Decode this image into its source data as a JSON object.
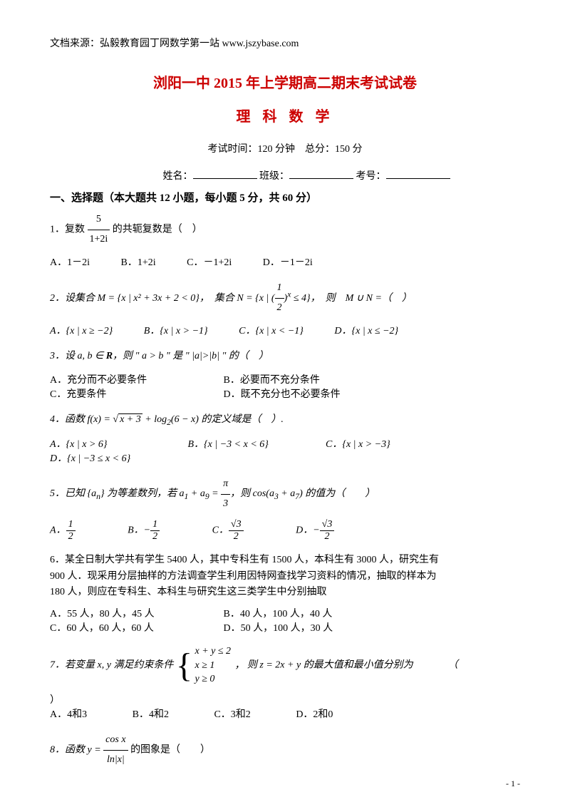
{
  "source": "文档来源：弘毅教育园丁网数学第一站 www.jszybase.com",
  "title": "浏阳一中 2015 年上学期高二期末考试试卷",
  "subtitle": "理 科 数 学",
  "exam_info": "考试时间：120 分钟　总分：150 分",
  "student_info": {
    "name_label": "姓名：",
    "class_label": "班级：",
    "id_label": "考号："
  },
  "section1": "一、选择题（本大题共 12 小题，每小题 5 分，共 60 分）",
  "q1": {
    "text_prefix": "1．复数",
    "frac_num": "5",
    "frac_den": "1+2i",
    "text_suffix": "的共轭复数是（　）",
    "optA": "A．1－2i",
    "optB": "B．1+2i",
    "optC": "C．－1+2i",
    "optD": "D．－1－2i"
  },
  "q2": {
    "text": "2．设集合 M = {x | x² + 3x + 2 < 0}，　集合 N = {x | (½)ˣ ≤ 4}，　则　M ∪ N =（　）",
    "optA": "A．{x | x ≥ −2}",
    "optB": "B．{x | x > −1}",
    "optC": "C．{x | x < −1}",
    "optD": "D．{x | x ≤ −2}"
  },
  "q3": {
    "text": "3．设 a, b ∈ R，则 \" a > b \" 是 \" |a|>|b| \" 的（　）",
    "optA": "A．充分而不必要条件",
    "optB": "B．必要而不充分条件",
    "optC": "C．充要条件",
    "optD": "D．既不充分也不必要条件"
  },
  "q4": {
    "text": "4．函数 f(x) = √(x+3) + log₂(6−x) 的定义域是（　）.",
    "optA": "A．{x | x > 6}",
    "optB": "B．{x | −3 < x < 6}",
    "optC": "C．{x | x > −3}",
    "optD": "D．{x | −3 ≤ x < 6}"
  },
  "q5": {
    "text": "5．已知 {aₙ} 为等差数列，若 a₁ + a₉ = π/3，则 cos(a₃ + a₇) 的值为（　　）",
    "optA": "A．½",
    "optB": "B．−½",
    "optC": "C．√3/2",
    "optD": "D．−√3/2"
  },
  "q6": {
    "text1": "6．某全日制大学共有学生 5400 人，其中专科生有 1500 人，本科生有 3000 人，研究生有",
    "text2": "900 人．现采用分层抽样的方法调查学生利用因特网查找学习资料的情况，抽取的样本为",
    "text3": "180 人，则应在专科生、本科生与研究生这三类学生中分别抽取",
    "optA": "A．55 人，80 人，45 人",
    "optB": "B．40 人，100 人，40 人",
    "optC": "C．60 人，60 人，60 人",
    "optD": "D．50 人，100 人，30 人"
  },
  "q7": {
    "text_prefix": "7．若变量 x, y 满足约束条件",
    "sys1": "x + y ≤ 2",
    "sys2": "x ≥ 1",
    "sys3": "y ≥ 0",
    "text_suffix": "，则 z = 2x + y 的最大值和最小值分别为",
    "paren": "（",
    "close": "）",
    "optA": "A．4和3",
    "optB": "B．4和2",
    "optC": "C．3和2",
    "optD": "D．2和0"
  },
  "q8": {
    "text_prefix": "8．函数 y = ",
    "frac_num": "cos x",
    "frac_den": "ln|x|",
    "text_suffix": " 的图象是（　　）"
  },
  "page_num": "- 1 -",
  "colors": {
    "title_color": "#cc0000",
    "text_color": "#000000",
    "bg_color": "#ffffff"
  }
}
